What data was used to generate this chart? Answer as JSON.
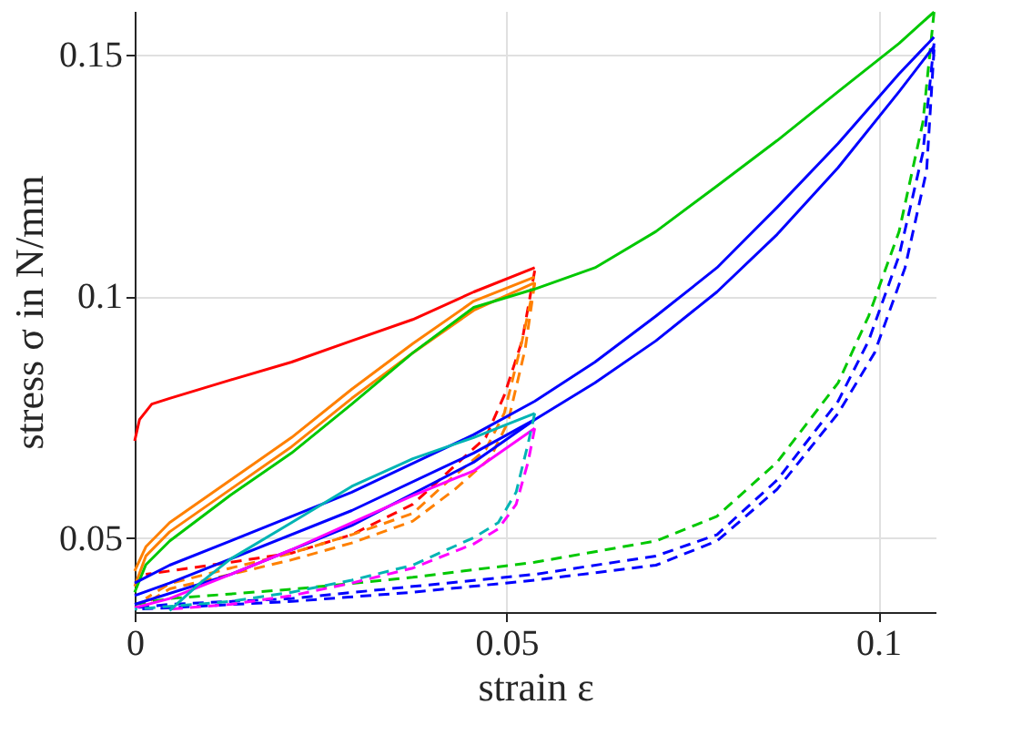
{
  "chart_data": {
    "type": "line",
    "xlabel": "strain ε",
    "ylabel": "stress σ in N/mm",
    "xlim": [
      0,
      0.1077
    ],
    "ylim": [
      0.0347,
      0.159
    ],
    "xticks": [
      0,
      0.05,
      0.1
    ],
    "yticks": [
      0.05,
      0.1,
      0.15
    ],
    "grid": true,
    "marker": "none",
    "series": [
      {
        "color": "#ff0000",
        "line_style": "solid",
        "x": [
          0,
          0.00065,
          0.0023,
          0.0047,
          0.0129,
          0.0211,
          0.0292,
          0.0374,
          0.0456,
          0.0538
        ],
        "values": [
          0.0701,
          0.0745,
          0.0777,
          0.0789,
          0.0827,
          0.0864,
          0.0908,
          0.0952,
          0.1009,
          0.1059
        ]
      },
      {
        "color": "#ff0000",
        "line_style": "dashed",
        "x": [
          0.0538,
          0.0521,
          0.0497,
          0.0472,
          0.0374,
          0.0292,
          0.0211,
          0.0129,
          0.0047,
          0.0015
        ],
        "values": [
          0.1053,
          0.0908,
          0.0795,
          0.0708,
          0.057,
          0.0507,
          0.0469,
          0.045,
          0.0432,
          0.0425
        ]
      },
      {
        "color": "#ff8000",
        "line_style": "solid",
        "x": [
          0,
          0.0015,
          0.0047,
          0.0129,
          0.0211,
          0.0292,
          0.0374,
          0.0456,
          0.0538
        ],
        "values": [
          0.0432,
          0.0482,
          0.0532,
          0.062,
          0.0708,
          0.0808,
          0.0902,
          0.099,
          0.104
        ]
      },
      {
        "color": "#ff8000",
        "line_style": "solid",
        "x": [
          0,
          0.0015,
          0.0047,
          0.0129,
          0.0211,
          0.0292,
          0.0374,
          0.0456,
          0.0538
        ],
        "values": [
          0.04,
          0.0463,
          0.0513,
          0.0601,
          0.0689,
          0.0789,
          0.0883,
          0.0971,
          0.1028
        ]
      },
      {
        "color": "#ff8000",
        "line_style": "dashed",
        "x": [
          0.0538,
          0.0521,
          0.0497,
          0.0472,
          0.0423,
          0.0374,
          0.0292,
          0.0211,
          0.0129,
          0.0047,
          0.0015
        ],
        "values": [
          0.1028,
          0.0908,
          0.0758,
          0.0683,
          0.062,
          0.0551,
          0.0507,
          0.0469,
          0.0438,
          0.0406,
          0.0375
        ]
      },
      {
        "color": "#ff8000",
        "line_style": "dashed",
        "x": [
          0.0538,
          0.0525,
          0.0502,
          0.0478,
          0.043,
          0.0374,
          0.0292,
          0.0211,
          0.0129,
          0.0047,
          0.0015
        ],
        "values": [
          0.1028,
          0.089,
          0.074,
          0.0665,
          0.06,
          0.0535,
          0.049,
          0.0455,
          0.0425,
          0.0395,
          0.0365
        ]
      },
      {
        "color": "#00c800",
        "line_style": "solid",
        "x": [
          0,
          0.0015,
          0.0047,
          0.0129,
          0.0211,
          0.0292,
          0.0374,
          0.0456,
          0.0538,
          0.0619,
          0.0701,
          0.0783,
          0.0864,
          0.0946,
          0.1028,
          0.1075
        ],
        "values": [
          0.0388,
          0.0445,
          0.0494,
          0.0589,
          0.0676,
          0.0777,
          0.0883,
          0.0977,
          0.1015,
          0.1059,
          0.1134,
          0.1228,
          0.1322,
          0.1423,
          0.1523,
          0.1588
        ]
      },
      {
        "color": "#00c800",
        "line_style": "dashed",
        "x": [
          0.1075,
          0.106,
          0.1028,
          0.0987,
          0.0946,
          0.0864,
          0.0783,
          0.0701,
          0.0538,
          0.0374,
          0.0211,
          0.0047,
          0
        ],
        "values": [
          0.1588,
          0.136,
          0.1134,
          0.0959,
          0.0821,
          0.0657,
          0.0545,
          0.0494,
          0.045,
          0.0419,
          0.0394,
          0.0375,
          0.0363
        ]
      },
      {
        "color": "#0000ff",
        "line_style": "solid",
        "x": [
          0,
          0.0047,
          0.0129,
          0.0292,
          0.0456,
          0.0538,
          0.0619,
          0.0701,
          0.0783,
          0.0864,
          0.0946,
          0.1028,
          0.1075
        ],
        "values": [
          0.0407,
          0.0444,
          0.0494,
          0.0595,
          0.0714,
          0.0783,
          0.0864,
          0.0959,
          0.1059,
          0.1184,
          0.1316,
          0.146,
          0.1536
        ]
      },
      {
        "color": "#0000ff",
        "line_style": "solid",
        "x": [
          0,
          0.0047,
          0.0129,
          0.0292,
          0.0456,
          0.0538,
          0.0619,
          0.0701,
          0.0783,
          0.0864,
          0.0946,
          0.1028,
          0.1075
        ],
        "values": [
          0.0381,
          0.0407,
          0.0457,
          0.0557,
          0.0676,
          0.0745,
          0.0821,
          0.0908,
          0.1009,
          0.1128,
          0.1266,
          0.1423,
          0.1517
        ]
      },
      {
        "color": "#0000ff",
        "line_style": "solid",
        "x": [
          0,
          0.0129,
          0.0292,
          0.0456,
          0.0538
        ],
        "values": [
          0.0363,
          0.0425,
          0.0526,
          0.0657,
          0.0745
        ]
      },
      {
        "color": "#0000ff",
        "line_style": "dashed",
        "x": [
          0.1075,
          0.106,
          0.1028,
          0.0987,
          0.0946,
          0.0864,
          0.0783,
          0.0701,
          0.0538,
          0.0374,
          0.0211,
          0.0047,
          0
        ],
        "values": [
          0.1523,
          0.1297,
          0.1084,
          0.0908,
          0.0783,
          0.062,
          0.0507,
          0.0463,
          0.0425,
          0.04,
          0.0375,
          0.0363,
          0.0356
        ]
      },
      {
        "color": "#0000ff",
        "line_style": "dashed",
        "x": [
          0.1075,
          0.1065,
          0.1036,
          0.0995,
          0.0946,
          0.0864,
          0.0783,
          0.0701,
          0.0538,
          0.0374,
          0.0211,
          0.0047,
          0
        ],
        "values": [
          0.151,
          0.126,
          0.1059,
          0.0883,
          0.0758,
          0.0601,
          0.0494,
          0.0444,
          0.0413,
          0.0388,
          0.0369,
          0.0356,
          0.0353
        ]
      },
      {
        "color": "#ff00ff",
        "line_style": "solid",
        "x": [
          0,
          0.0047,
          0.0129,
          0.0211,
          0.0292,
          0.0374,
          0.0456,
          0.0538
        ],
        "values": [
          0.0356,
          0.0375,
          0.0425,
          0.0476,
          0.0532,
          0.0588,
          0.0639,
          0.0727
        ]
      },
      {
        "color": "#ff00ff",
        "line_style": "dashed",
        "x": [
          0.0538,
          0.0529,
          0.0513,
          0.0489,
          0.0456,
          0.0374,
          0.0292,
          0.0211,
          0.0129,
          0.0047
        ],
        "values": [
          0.0727,
          0.0657,
          0.057,
          0.0519,
          0.0488,
          0.0438,
          0.0407,
          0.0381,
          0.0363,
          0.0353
        ]
      },
      {
        "color": "#00b4b4",
        "line_style": "solid",
        "x": [
          0.0047,
          0.0088,
          0.0129,
          0.0211,
          0.0292,
          0.0374,
          0.0456,
          0.0538
        ],
        "values": [
          0.035,
          0.0407,
          0.0457,
          0.0532,
          0.0607,
          0.0664,
          0.0708,
          0.0758
        ]
      },
      {
        "color": "#00b4b4",
        "line_style": "dashed",
        "x": [
          0.0538,
          0.0529,
          0.0513,
          0.0489,
          0.0456,
          0.0374,
          0.0292,
          0.0211,
          0.0129,
          0
        ],
        "values": [
          0.0758,
          0.0695,
          0.0595,
          0.0532,
          0.0501,
          0.0444,
          0.0413,
          0.0388,
          0.0369,
          0.0353
        ]
      }
    ]
  }
}
